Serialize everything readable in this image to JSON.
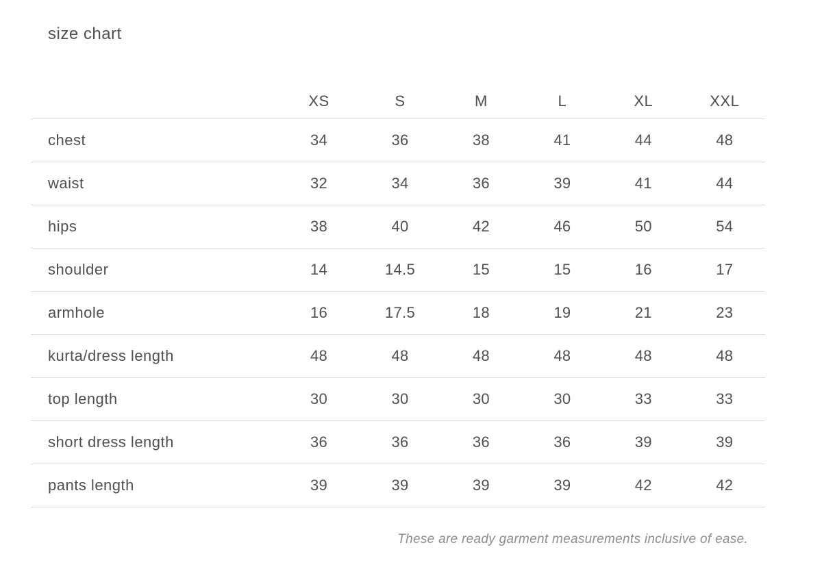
{
  "title": "size chart",
  "table": {
    "columns": [
      "XS",
      "S",
      "M",
      "L",
      "XL",
      "XXL"
    ],
    "rows": [
      {
        "label": "chest",
        "values": [
          "34",
          "36",
          "38",
          "41",
          "44",
          "48"
        ]
      },
      {
        "label": "waist",
        "values": [
          "32",
          "34",
          "36",
          "39",
          "41",
          "44"
        ]
      },
      {
        "label": "hips",
        "values": [
          "38",
          "40",
          "42",
          "46",
          "50",
          "54"
        ]
      },
      {
        "label": "shoulder",
        "values": [
          "14",
          "14.5",
          "15",
          "15",
          "16",
          "17"
        ]
      },
      {
        "label": "armhole",
        "values": [
          "16",
          "17.5",
          "18",
          "19",
          "21",
          "23"
        ]
      },
      {
        "label": "kurta/dress length",
        "values": [
          "48",
          "48",
          "48",
          "48",
          "48",
          "48"
        ]
      },
      {
        "label": "top length",
        "values": [
          "30",
          "30",
          "30",
          "30",
          "33",
          "33"
        ]
      },
      {
        "label": "short dress length",
        "values": [
          "36",
          "36",
          "36",
          "36",
          "39",
          "39"
        ]
      },
      {
        "label": "pants length",
        "values": [
          "39",
          "39",
          "39",
          "39",
          "42",
          "42"
        ]
      }
    ]
  },
  "footnote": "These are ready garment measurements inclusive of ease.",
  "colors": {
    "text": "#4f4f4f",
    "divider": "#dedede",
    "footnote": "#8c8c8c",
    "background": "#ffffff"
  }
}
